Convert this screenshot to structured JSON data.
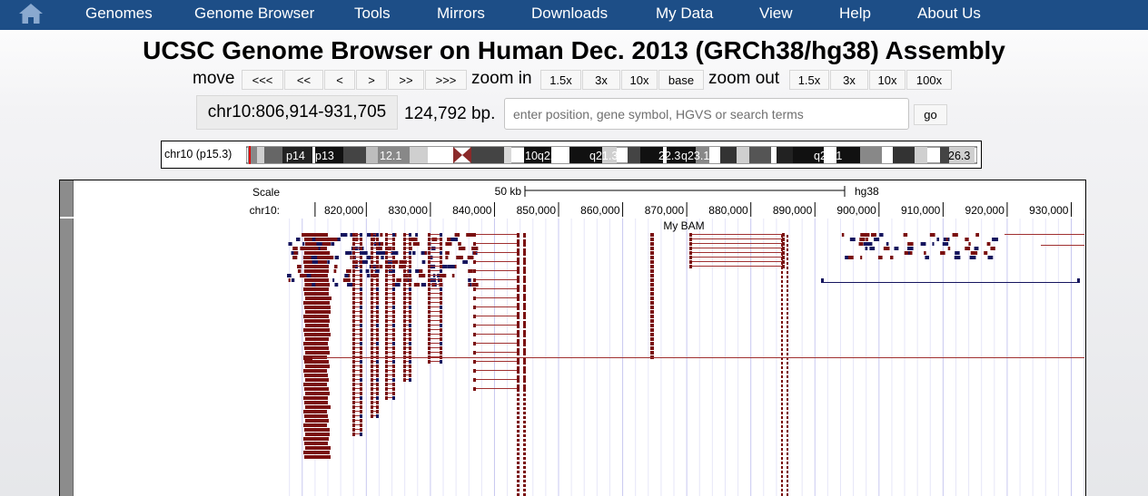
{
  "nav": {
    "home_icon": "home-icon",
    "items": [
      "Genomes",
      "Genome Browser",
      "Tools",
      "Mirrors",
      "Downloads",
      "My Data",
      "View",
      "Help",
      "About Us"
    ]
  },
  "title": "UCSC Genome Browser on Human Dec. 2013 (GRCh38/hg38) Assembly",
  "move": {
    "label": "move",
    "buttons": [
      "<<<",
      "<<",
      "<",
      ">",
      ">>",
      ">>>"
    ]
  },
  "zoom_in": {
    "label": "zoom in",
    "buttons": [
      "1.5x",
      "3x",
      "10x",
      "base"
    ]
  },
  "zoom_out": {
    "label": "zoom out",
    "buttons": [
      "1.5x",
      "3x",
      "10x",
      "100x"
    ]
  },
  "position": "chr10:806,914-931,705",
  "size_text": "124,792 bp.",
  "search": {
    "placeholder": "enter position, gene symbol, HGVS or search terms",
    "value": ""
  },
  "go_label": "go",
  "ideogram": {
    "label": "chr10 (p15.3)",
    "band_labels": [
      "p14",
      "p13",
      "12.1",
      "10q21.1",
      "q21.3",
      "22.3",
      "q23.1",
      "q25.1",
      "26.3"
    ]
  },
  "track": {
    "scale_label": "Scale",
    "scale_value": "50 kb",
    "assembly": "hg38",
    "chrom_label": "chr10:",
    "ticks": [
      "820,000",
      "830,000",
      "840,000",
      "850,000",
      "860,000",
      "870,000",
      "880,000",
      "890,000",
      "900,000",
      "910,000",
      "920,000",
      "930,000"
    ],
    "track_name": "My BAM"
  },
  "colors": {
    "nav_bg": "#1d4e87",
    "read_fill": "#7a0f0f",
    "read_line": "#a03030",
    "read_blue": "#15155e"
  }
}
